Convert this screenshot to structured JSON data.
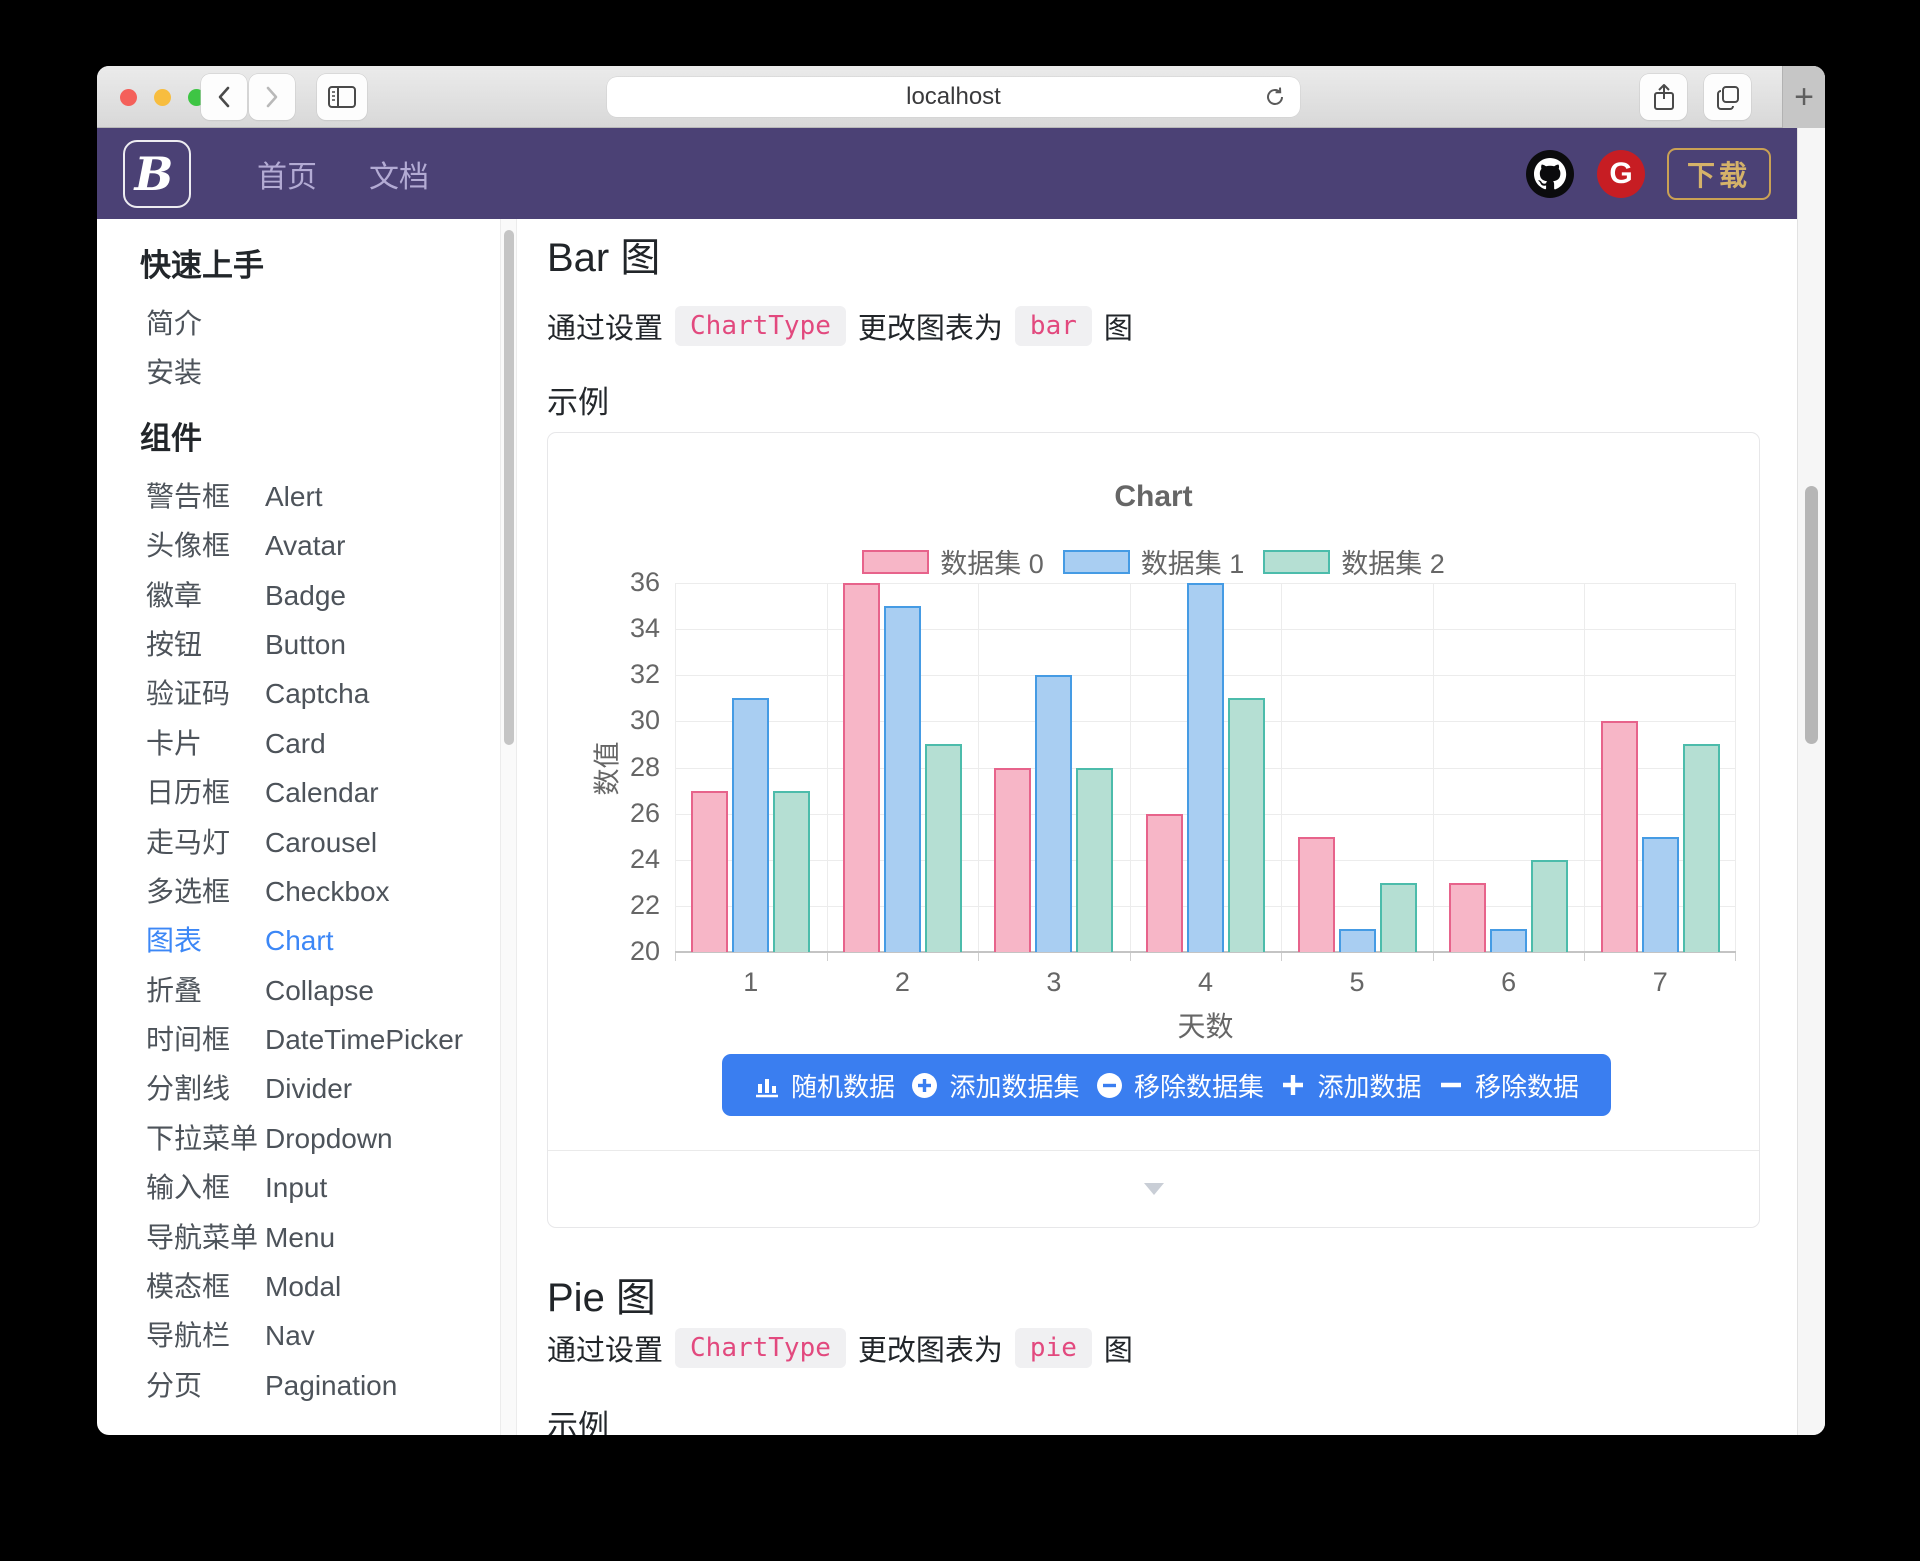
{
  "browser": {
    "url": "localhost",
    "new_tab_label": "+"
  },
  "navbar": {
    "logo_letter": "B",
    "links": [
      {
        "label": "首页"
      },
      {
        "label": "文档"
      }
    ],
    "gitee_letter": "G",
    "download_label": "下载",
    "colors": {
      "bg": "#4b4175",
      "link": "#b3abd4",
      "download_gold": "#d5b269",
      "gitee_red": "#c71d23"
    }
  },
  "sidebar": {
    "active_color": "#3c87f6",
    "sections": [
      {
        "heading": "快速上手",
        "items": [
          {
            "zh": "简介",
            "en": ""
          },
          {
            "zh": "安装",
            "en": ""
          }
        ]
      },
      {
        "heading": "组件",
        "items": [
          {
            "zh": "警告框",
            "en": "Alert"
          },
          {
            "zh": "头像框",
            "en": "Avatar"
          },
          {
            "zh": "徽章",
            "en": "Badge"
          },
          {
            "zh": "按钮",
            "en": "Button"
          },
          {
            "zh": "验证码",
            "en": "Captcha"
          },
          {
            "zh": "卡片",
            "en": "Card"
          },
          {
            "zh": "日历框",
            "en": "Calendar"
          },
          {
            "zh": "走马灯",
            "en": "Carousel"
          },
          {
            "zh": "多选框",
            "en": "Checkbox"
          },
          {
            "zh": "图表",
            "en": "Chart",
            "active": true
          },
          {
            "zh": "折叠",
            "en": "Collapse"
          },
          {
            "zh": "时间框",
            "en": "DateTimePicker"
          },
          {
            "zh": "分割线",
            "en": "Divider"
          },
          {
            "zh": "下拉菜单",
            "en": "Dropdown"
          },
          {
            "zh": "输入框",
            "en": "Input"
          },
          {
            "zh": "导航菜单",
            "en": "Menu"
          },
          {
            "zh": "模态框",
            "en": "Modal"
          },
          {
            "zh": "导航栏",
            "en": "Nav"
          },
          {
            "zh": "分页",
            "en": "Pagination"
          }
        ]
      }
    ]
  },
  "main": {
    "bar_section": {
      "title": "Bar 图",
      "example_label": "示例",
      "desc_segments": [
        {
          "text": "通过设置"
        },
        {
          "code": "ChartType"
        },
        {
          "text": "更改图表为"
        },
        {
          "code": "bar"
        },
        {
          "text": "图"
        }
      ]
    },
    "pie_section": {
      "title": "Pie 图",
      "example_label": "示例",
      "desc_segments": [
        {
          "text": "通过设置"
        },
        {
          "code": "ChartType"
        },
        {
          "text": "更改图表为"
        },
        {
          "code": "pie"
        },
        {
          "text": "图"
        }
      ]
    },
    "chart_buttons": [
      {
        "icon": "bar-chart",
        "label": "随机数据"
      },
      {
        "icon": "plus-circle",
        "label": "添加数据集"
      },
      {
        "icon": "minus-circle",
        "label": "移除数据集"
      },
      {
        "icon": "plus",
        "label": "添加数据"
      },
      {
        "icon": "minus",
        "label": "移除数据"
      }
    ]
  },
  "chart_data": {
    "type": "bar",
    "title": "Chart",
    "categories": [
      "1",
      "2",
      "3",
      "4",
      "5",
      "6",
      "7"
    ],
    "series": [
      {
        "name": "数据集 0",
        "values": [
          27,
          36,
          28,
          26,
          25,
          23,
          30
        ],
        "fill": "#f7b6c7",
        "border": "#e7638b"
      },
      {
        "name": "数据集 1",
        "values": [
          31,
          35,
          32,
          36,
          21,
          21,
          25
        ],
        "fill": "#a9cef2",
        "border": "#459be4"
      },
      {
        "name": "数据集 2",
        "values": [
          27,
          29,
          28,
          31,
          23,
          24,
          29
        ],
        "fill": "#b5dfd3",
        "border": "#4cbcab"
      }
    ],
    "xlabel": "天数",
    "ylabel": "数值",
    "ylim": [
      20,
      36
    ],
    "ytick_step": 2,
    "grid": true,
    "legend_position": "top"
  }
}
